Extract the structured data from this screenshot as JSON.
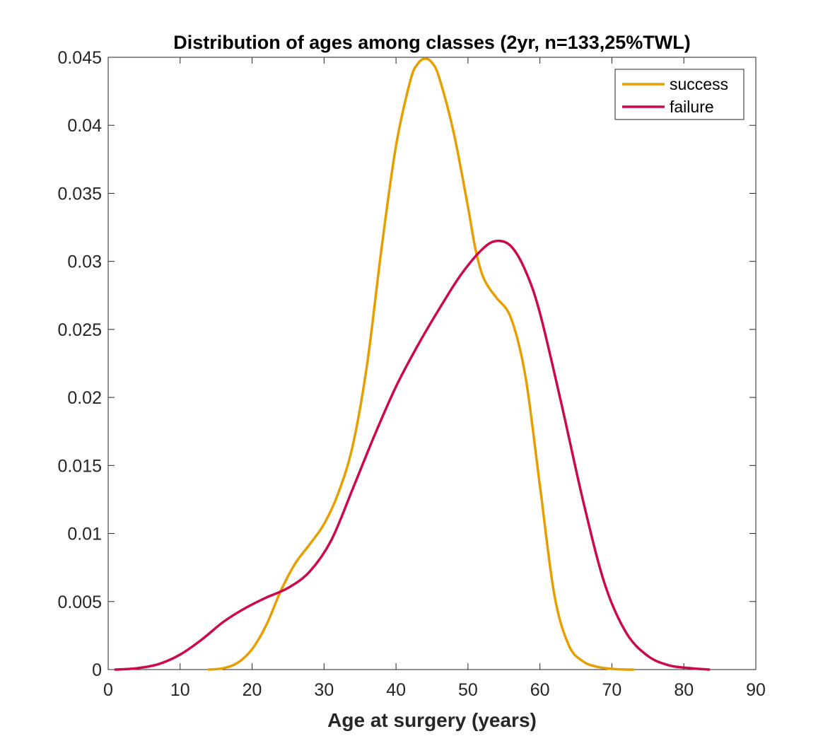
{
  "chart_data": {
    "type": "line",
    "title": "Distribution of ages among classes (2yr, n=133,25%TWL)",
    "xlabel": "Age at surgery (years)",
    "ylabel": "",
    "xlim": [
      0,
      90
    ],
    "ylim": [
      0,
      0.045
    ],
    "xticks": [
      0,
      10,
      20,
      30,
      40,
      50,
      60,
      70,
      80,
      90
    ],
    "xtick_labels": [
      "0",
      "10",
      "20",
      "30",
      "40",
      "50",
      "60",
      "70",
      "80",
      "90"
    ],
    "yticks": [
      0,
      0.005,
      0.01,
      0.015,
      0.02,
      0.025,
      0.03,
      0.035,
      0.04,
      0.045
    ],
    "ytick_labels": [
      "0",
      "0.005",
      "0.01",
      "0.015",
      "0.02",
      "0.025",
      "0.03",
      "0.035",
      "0.04",
      "0.045"
    ],
    "grid": false,
    "legend_position": "top-right",
    "series": [
      {
        "name": "success",
        "color": "#E69F00",
        "x": [
          14,
          16,
          18,
          20,
          22,
          24,
          26,
          28,
          30,
          32,
          34,
          36,
          38,
          40,
          42,
          43,
          44,
          45,
          46,
          48,
          50,
          51,
          52,
          53,
          54,
          56,
          58,
          60,
          62,
          64,
          66,
          68,
          70,
          72,
          73
        ],
        "y": [
          0.0,
          0.0001,
          0.0005,
          0.0015,
          0.0033,
          0.0058,
          0.0078,
          0.0092,
          0.0107,
          0.013,
          0.0165,
          0.0225,
          0.031,
          0.0385,
          0.0433,
          0.0445,
          0.0449,
          0.0446,
          0.0435,
          0.0395,
          0.034,
          0.031,
          0.029,
          0.028,
          0.0273,
          0.0258,
          0.0215,
          0.0135,
          0.0055,
          0.0018,
          0.0006,
          0.0002,
          5e-05,
          0.0,
          0.0
        ]
      },
      {
        "name": "failure",
        "color": "#CC0A4B",
        "x": [
          1,
          4,
          7,
          10,
          13,
          16,
          19,
          22,
          25,
          28,
          31,
          34,
          37,
          40,
          43,
          46,
          49,
          52,
          54,
          56,
          58,
          60,
          63,
          66,
          69,
          72,
          75,
          78,
          81,
          83.5
        ],
        "y": [
          0.0,
          0.0001,
          0.0004,
          0.0011,
          0.0022,
          0.0035,
          0.0045,
          0.0053,
          0.006,
          0.0072,
          0.0095,
          0.0133,
          0.0172,
          0.0208,
          0.0238,
          0.0265,
          0.029,
          0.0309,
          0.0315,
          0.0311,
          0.0293,
          0.0262,
          0.0195,
          0.0124,
          0.0063,
          0.0027,
          0.001,
          0.0003,
          0.0001,
          0.0
        ]
      }
    ]
  }
}
